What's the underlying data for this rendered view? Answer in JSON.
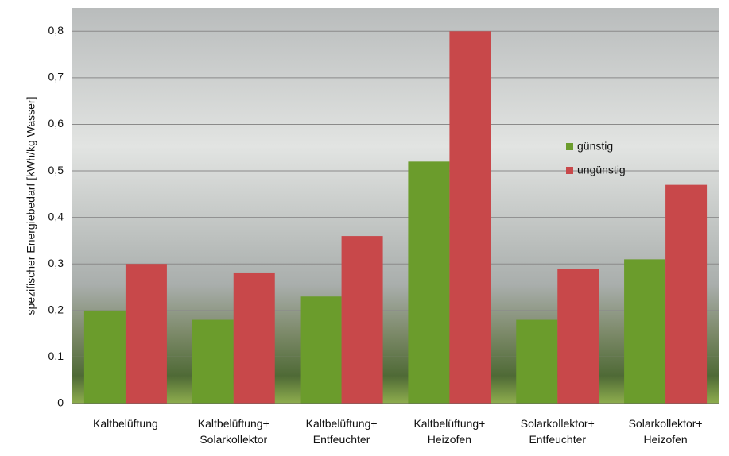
{
  "chart_data": {
    "type": "bar",
    "y_label": "spezifischer Energiebedarf [kWh/kg Wasser]",
    "categories": [
      "Kaltbelüftung",
      "Kaltbelüftung+\nSolarkollektor",
      "Kaltbelüftung+\nEntfeuchter",
      "Kaltbelüftung+\nHeizofen",
      "Solarkollektor+\nEntfeuchter",
      "Solarkollektor+\nHeizofen"
    ],
    "series": [
      {
        "name": "günstig",
        "color": "#6b9c2c",
        "values": [
          0.2,
          0.18,
          0.23,
          0.52,
          0.18,
          0.31
        ]
      },
      {
        "name": "ungünstig",
        "color": "#c8484a",
        "values": [
          0.3,
          0.28,
          0.36,
          0.8,
          0.29,
          0.47
        ]
      }
    ],
    "ylim": [
      0,
      0.85
    ],
    "yticks": [
      0,
      {
        "value": 0.1,
        "label": "0,1"
      },
      {
        "value": 0.2,
        "label": "0,2"
      },
      {
        "value": 0.3,
        "label": "0,3"
      },
      {
        "value": 0.4,
        "label": "0,4"
      },
      {
        "value": 0.5,
        "label": "0,5"
      },
      {
        "value": 0.6,
        "label": "0,6"
      },
      {
        "value": 0.7,
        "label": "0,7"
      },
      {
        "value": 0.8,
        "label": "0,8"
      }
    ],
    "grid": true,
    "legend": "right"
  }
}
